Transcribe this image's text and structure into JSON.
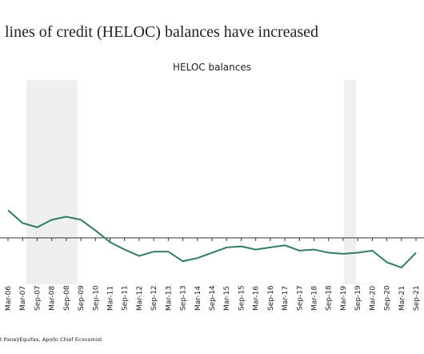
{
  "chart_data": {
    "type": "line",
    "title": "lines of credit (HELOC) balances have increased",
    "subtitle": "HELOC balances",
    "source": "t Panel/Equifax, Apollo Chief Economist",
    "categories": [
      "Mar-06",
      "Mar-07",
      "Sep-07",
      "Mar-08",
      "Sep-08",
      "Sep-09",
      "Sep-10",
      "Mar-11",
      "Sep-11",
      "Mar-12",
      "Sep-12",
      "Mar-13",
      "Sep-13",
      "Mar-14",
      "Sep-14",
      "Mar-15",
      "Sep-15",
      "Mar-16",
      "Sep-16",
      "Mar-17",
      "Sep-17",
      "Mar-18",
      "Sep-18",
      "Mar-19",
      "Sep-19",
      "Mar-20",
      "Sep-20",
      "Mar-21",
      "Sep-21"
    ],
    "series": [
      {
        "name": "HELOC balances",
        "color": "#2e7d5b",
        "values": [
          2.6,
          1.4,
          1.0,
          1.7,
          2.0,
          1.7,
          0.7,
          -0.4,
          -1.1,
          -1.7,
          -1.3,
          -1.3,
          -2.2,
          -1.9,
          -1.4,
          -0.9,
          -0.8,
          -1.1,
          -0.9,
          -0.7,
          -1.2,
          -1.1,
          -1.4,
          -1.5,
          -1.4,
          -1.2,
          -2.3,
          -2.8,
          -1.4
        ]
      }
    ],
    "ylim": [
      -4,
      16
    ]
  }
}
